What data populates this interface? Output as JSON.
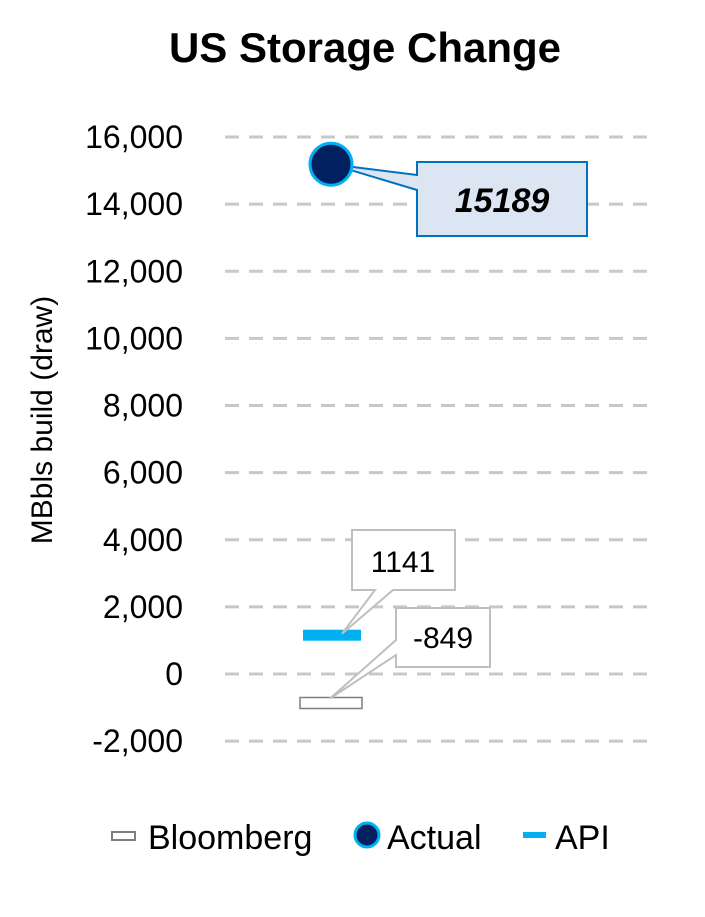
{
  "chart_data": {
    "type": "scatter",
    "title": "US Storage Change",
    "ylabel": "MBbls build (draw)",
    "xlabel": "",
    "ylim": [
      -2000,
      16000
    ],
    "yticks": [
      -2000,
      0,
      2000,
      4000,
      6000,
      8000,
      10000,
      12000,
      14000,
      16000
    ],
    "ytick_labels": [
      "-2,000",
      "0",
      "2,000",
      "4,000",
      "6,000",
      "8,000",
      "10,000",
      "12,000",
      "14,000",
      "16,000"
    ],
    "grid": true,
    "legend_position": "bottom",
    "series": [
      {
        "name": "Bloomberg",
        "value": -849,
        "label": "-849",
        "marker": "hollow-bar",
        "color": "#7f7f7f"
      },
      {
        "name": "Actual",
        "value": 15189,
        "label": "15189",
        "marker": "circle",
        "color": "#002060",
        "edge_color": "#00b0f0"
      },
      {
        "name": "API",
        "value": 1141,
        "label": "1141",
        "marker": "bar",
        "color": "#00b0f0"
      }
    ]
  }
}
